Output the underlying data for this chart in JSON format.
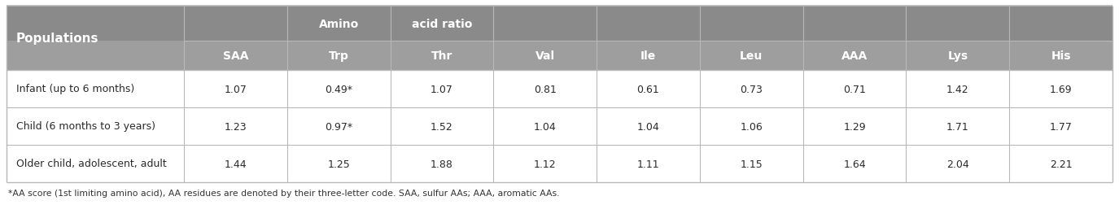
{
  "header_dark": "#8a8a8a",
  "header_mid": "#9e9e9e",
  "row_bg": "#f5f5f5",
  "border_color": "#c0c0c0",
  "col0_header": "Populations",
  "span_header": [
    "",
    "Amino",
    "acid ratio",
    "",
    "",
    "",
    "",
    "",
    "",
    ""
  ],
  "col_headers": [
    "SAA",
    "Trp",
    "Thr",
    "Val",
    "Ile",
    "Leu",
    "AAA",
    "Lys",
    "His"
  ],
  "rows": [
    {
      "label": "Infant (up to 6 months)",
      "values": [
        "1.07",
        "0.49*",
        "1.07",
        "0.81",
        "0.61",
        "0.73",
        "0.71",
        "1.42",
        "1.69"
      ]
    },
    {
      "label": "Child (6 months to 3 years)",
      "values": [
        "1.23",
        "0.97*",
        "1.52",
        "1.04",
        "1.04",
        "1.06",
        "1.29",
        "1.71",
        "1.77"
      ]
    },
    {
      "label": "Older child, adolescent, adult",
      "values": [
        "1.44",
        "1.25",
        "1.88",
        "1.12",
        "1.11",
        "1.15",
        "1.64",
        "2.04",
        "2.21"
      ]
    }
  ],
  "footnote": "*AA score (1st limiting amino acid), AA residues are denoted by their three-letter code. SAA, sulfur AAs; AAA, aromatic AAs."
}
